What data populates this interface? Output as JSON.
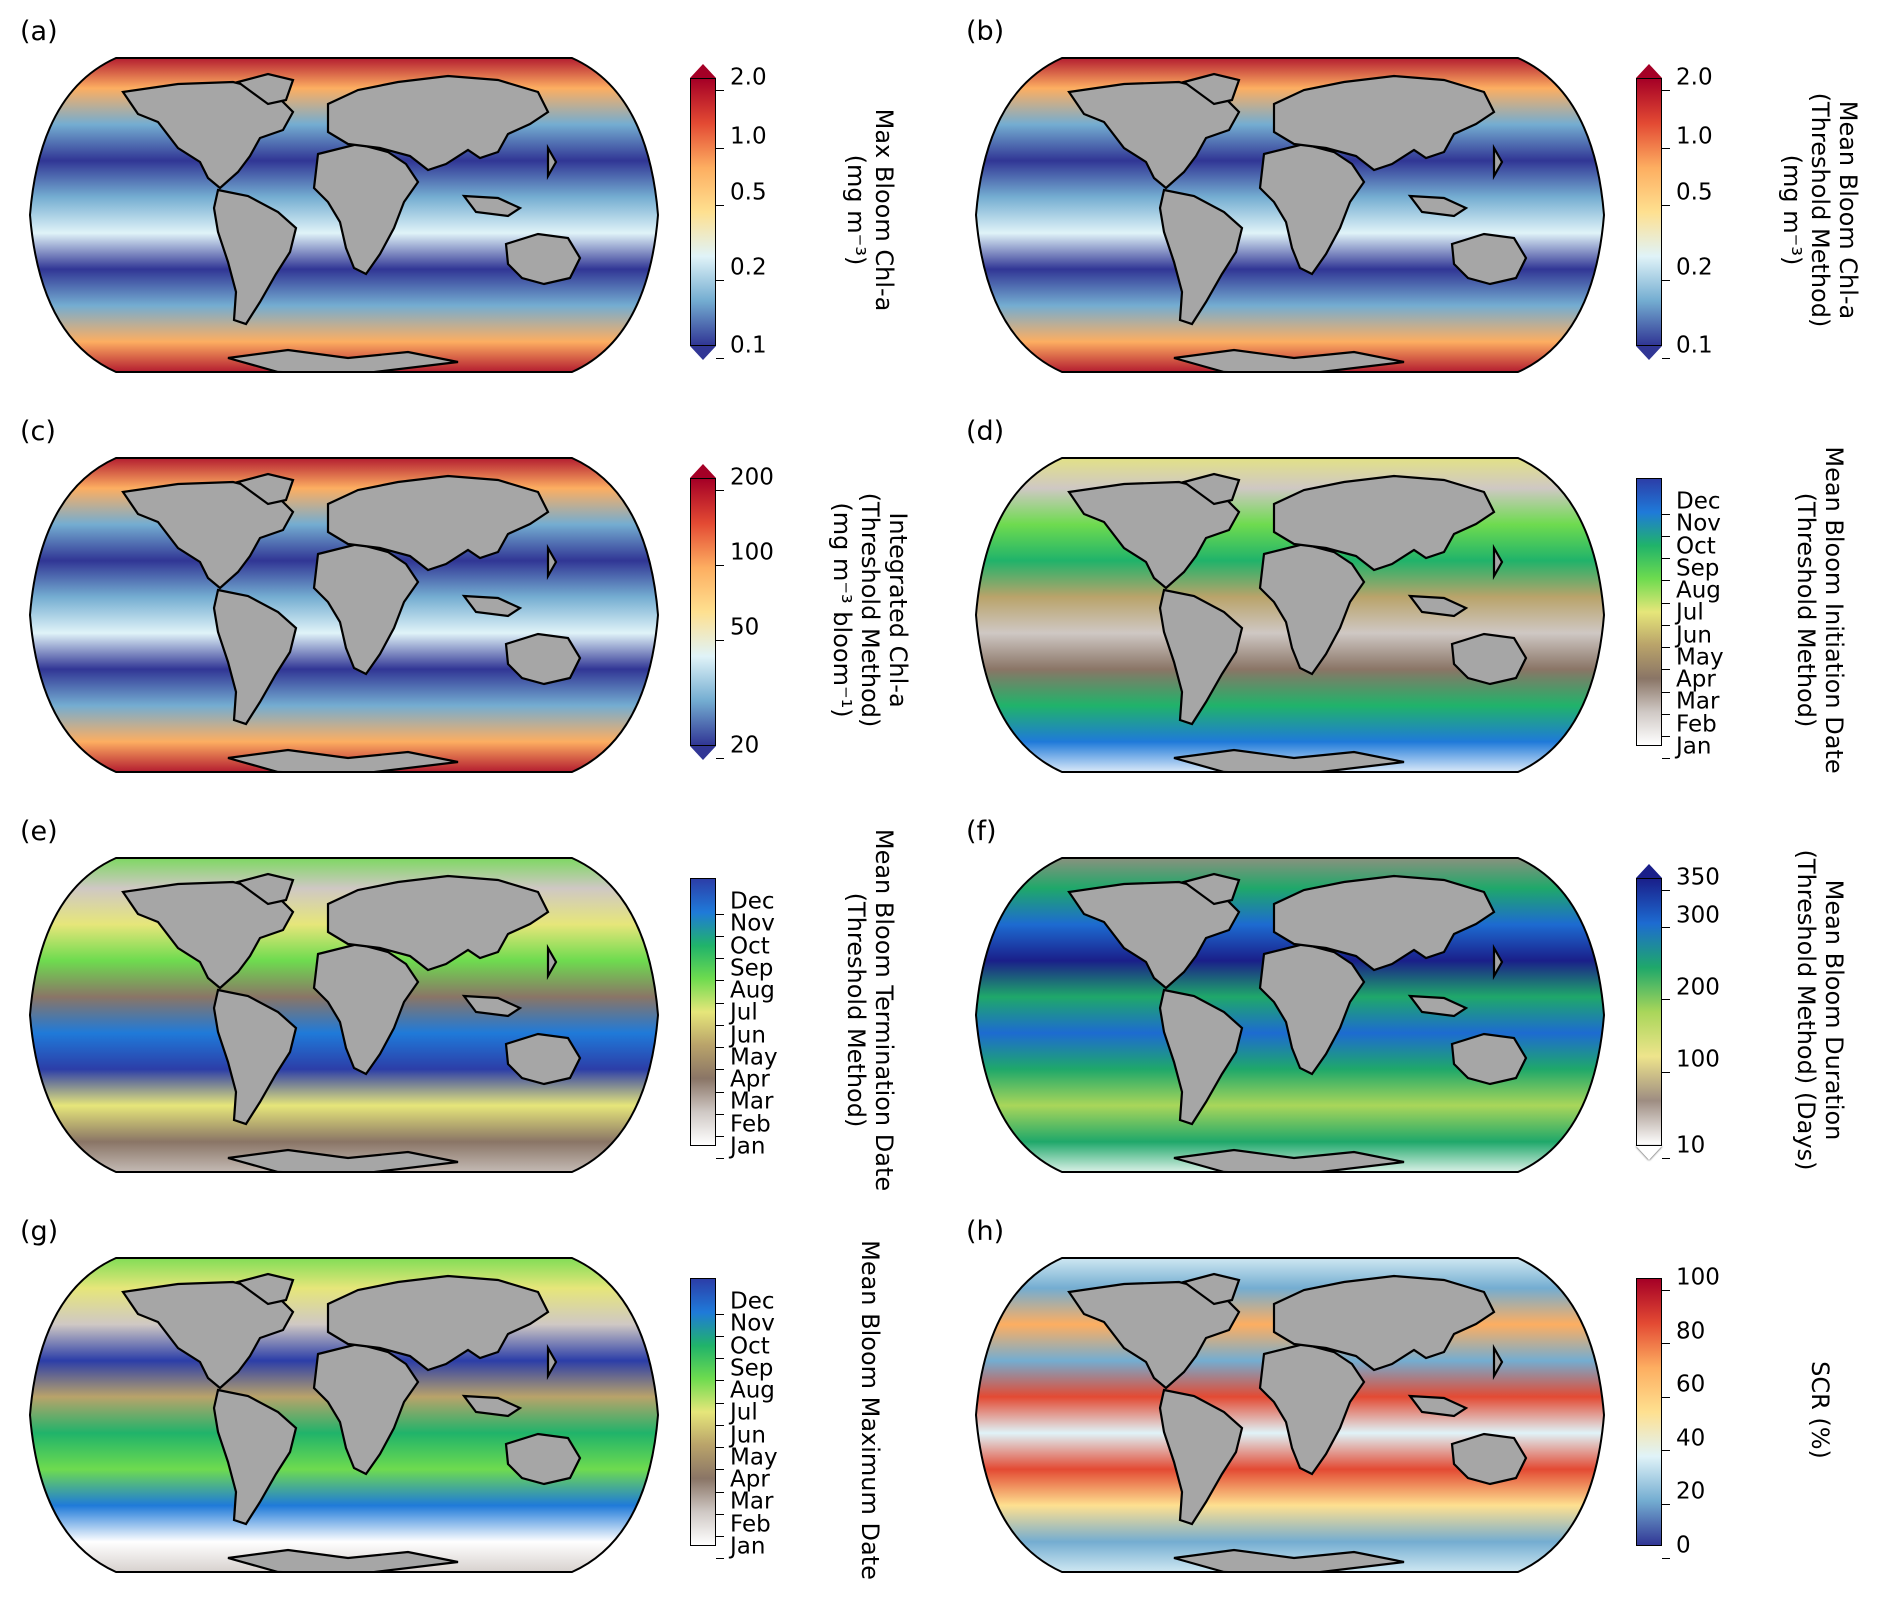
{
  "panels": [
    {
      "id": "a",
      "label": "(a)",
      "title_lines": [
        "Max Bloom Chl-a",
        "(mg m⁻³)"
      ],
      "ticks": [
        "2.0",
        "1.0",
        "0.5",
        "0.2",
        "0.1"
      ],
      "extend": "both",
      "cmap": "redblue"
    },
    {
      "id": "b",
      "label": "(b)",
      "title_lines": [
        "Mean Bloom Chl-a",
        "(Threshold Method)",
        "(mg m⁻³)"
      ],
      "ticks": [
        "2.0",
        "1.0",
        "0.5",
        "0.2",
        "0.1"
      ],
      "extend": "both",
      "cmap": "redblue"
    },
    {
      "id": "c",
      "label": "(c)",
      "title_lines": [
        "Integrated Chl-a",
        "(Threshold Method)",
        "(mg m⁻³ bloom⁻¹)"
      ],
      "ticks": [
        "200",
        "100",
        "50",
        "20"
      ],
      "extend": "both",
      "cmap": "redblue"
    },
    {
      "id": "d",
      "label": "(d)",
      "title_lines": [
        "Mean Bloom Initiation Date",
        "(Threshold Method)"
      ],
      "ticks": [
        "Dec",
        "Nov",
        "Oct",
        "Sep",
        "Aug",
        "Jul",
        "Jun",
        "May",
        "Apr",
        "Mar",
        "Feb",
        "Jan"
      ],
      "extend": "none",
      "cmap": "season"
    },
    {
      "id": "e",
      "label": "(e)",
      "title_lines": [
        "Mean Bloom Termination Date",
        "(Threshold Method)"
      ],
      "ticks": [
        "Dec",
        "Nov",
        "Oct",
        "Sep",
        "Aug",
        "Jul",
        "Jun",
        "May",
        "Apr",
        "Mar",
        "Feb",
        "Jan"
      ],
      "extend": "none",
      "cmap": "season"
    },
    {
      "id": "f",
      "label": "(f)",
      "title_lines": [
        "Mean Bloom Duration",
        "(Threshold Method) (Days)"
      ],
      "ticks": [
        "350",
        "300",
        "200",
        "100",
        "10"
      ],
      "extend": "both",
      "cmap": "duration"
    },
    {
      "id": "g",
      "label": "(g)",
      "title_lines": [
        "Mean Bloom Maximum Date"
      ],
      "ticks": [
        "Dec",
        "Nov",
        "Oct",
        "Sep",
        "Aug",
        "Jul",
        "Jun",
        "May",
        "Apr",
        "Mar",
        "Feb",
        "Jan"
      ],
      "extend": "none",
      "cmap": "season"
    },
    {
      "id": "h",
      "label": "(h)",
      "title_lines": [
        "SCR (%)"
      ],
      "ticks": [
        "100",
        "80",
        "60",
        "40",
        "20",
        "0"
      ],
      "extend": "none",
      "cmap": "redblue"
    }
  ],
  "colors": {
    "land": "#a6a6a6",
    "redblue": [
      "#a50026",
      "#e34a33",
      "#fdae61",
      "#fee090",
      "#e0f3f8",
      "#74add1",
      "#313695"
    ],
    "season": [
      "#2c3ea8",
      "#1f7ad9",
      "#20b36a",
      "#6edb4f",
      "#e6e67a",
      "#b9a36a",
      "#8a7566",
      "#cfc8c4",
      "#ffffff"
    ],
    "duration": [
      "#1a1f8a",
      "#1d6bd1",
      "#1fa86a",
      "#a9d65a",
      "#eee48c",
      "#9e8d82",
      "#ffffff"
    ]
  }
}
